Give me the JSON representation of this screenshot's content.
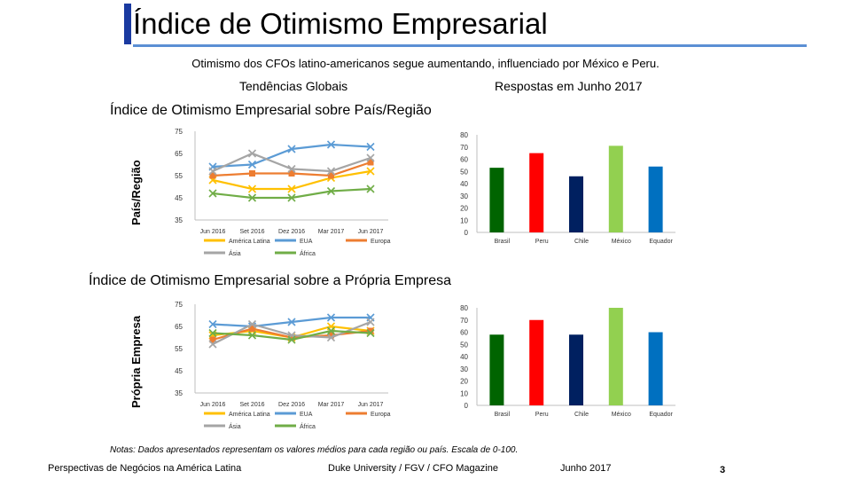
{
  "slide": {
    "title": "Índice de Otimismo Empresarial",
    "subtitle": "Otimismo dos CFOs latino-americanos segue aumentando, influenciado por México e Peru.",
    "trends_label": "Tendências Globais",
    "responses_label": "Respostas em Junho 2017",
    "notes": "Notas: Dados apresentados representam os valores médios para cada região ou país. Escala de 0-100.",
    "footer_left": "Perspectivas de Negócios na América Latina",
    "footer_mid": "Duke University / FGV / CFO Magazine",
    "footer_date": "Junho 2017",
    "page_number": "3",
    "accent_color": "#1a3aa0",
    "title_line_color": "#5b8fd4"
  },
  "sections": [
    {
      "title": "Índice de Otimismo Empresarial sobre País/Região",
      "ylabel": "País/Região"
    },
    {
      "title": "Índice de Otimismo Empresarial sobre a Própria Empresa",
      "ylabel": "Própria Empresa"
    }
  ],
  "chart_data": [
    {
      "type": "line",
      "title": "Índice de Otimismo Empresarial sobre País/Região",
      "ylabel": "País/Região",
      "x": [
        "Jun 2016",
        "Set 2016",
        "Dez 2016",
        "Mar 2017",
        "Jun 2017"
      ],
      "ylim": [
        35,
        75
      ],
      "yticks": [
        35,
        45,
        55,
        65,
        75
      ],
      "series": [
        {
          "name": "América Latina",
          "color": "#ffc000",
          "marker": "x",
          "values": [
            53,
            49,
            49,
            54,
            57
          ]
        },
        {
          "name": "EUA",
          "color": "#5b9bd5",
          "marker": "x",
          "values": [
            59,
            60,
            67,
            69,
            68
          ]
        },
        {
          "name": "Europa",
          "color": "#ed7d31",
          "marker": "square",
          "values": [
            55,
            56,
            56,
            55,
            61
          ]
        },
        {
          "name": "Ásia",
          "color": "#a5a5a5",
          "marker": "x",
          "values": [
            57,
            65,
            58,
            57,
            63
          ]
        },
        {
          "name": "África",
          "color": "#70ad47",
          "marker": "x",
          "values": [
            47,
            45,
            45,
            48,
            49
          ]
        }
      ]
    },
    {
      "type": "bar",
      "title": "Índice de Otimismo Empresarial sobre País/Região — Junho 2017",
      "categories": [
        "Brasil",
        "Peru",
        "Chile",
        "México",
        "Equador"
      ],
      "values": [
        53,
        65,
        46,
        71,
        54
      ],
      "colors": [
        "#006400",
        "#ff0000",
        "#002060",
        "#92d050",
        "#0070c0"
      ],
      "ylim": [
        0,
        80
      ],
      "yticks": [
        0,
        10,
        20,
        30,
        40,
        50,
        60,
        70,
        80
      ]
    },
    {
      "type": "line",
      "title": "Índice de Otimismo Empresarial sobre a Própria Empresa",
      "ylabel": "Própria Empresa",
      "x": [
        "Jun 2016",
        "Set 2016",
        "Dez 2016",
        "Mar 2017",
        "Jun 2017"
      ],
      "ylim": [
        35,
        75
      ],
      "yticks": [
        35,
        45,
        55,
        65,
        75
      ],
      "series": [
        {
          "name": "América Latina",
          "color": "#ffc000",
          "marker": "x",
          "values": [
            61,
            63,
            60,
            65,
            63
          ]
        },
        {
          "name": "EUA",
          "color": "#5b9bd5",
          "marker": "x",
          "values": [
            66,
            65,
            67,
            69,
            69
          ]
        },
        {
          "name": "Europa",
          "color": "#ed7d31",
          "marker": "square",
          "values": [
            59,
            64,
            60,
            61,
            63
          ]
        },
        {
          "name": "Ásia",
          "color": "#a5a5a5",
          "marker": "x",
          "values": [
            57,
            66,
            61,
            60,
            67
          ]
        },
        {
          "name": "África",
          "color": "#70ad47",
          "marker": "x",
          "values": [
            62,
            61,
            59,
            63,
            62
          ]
        }
      ]
    },
    {
      "type": "bar",
      "title": "Índice de Otimismo Empresarial sobre a Própria Empresa — Junho 2017",
      "categories": [
        "Brasil",
        "Peru",
        "Chile",
        "México",
        "Equador"
      ],
      "values": [
        58,
        70,
        58,
        80,
        60
      ],
      "colors": [
        "#006400",
        "#ff0000",
        "#002060",
        "#92d050",
        "#0070c0"
      ],
      "ylim": [
        0,
        80
      ],
      "yticks": [
        0,
        10,
        20,
        30,
        40,
        50,
        60,
        70,
        80
      ]
    }
  ]
}
